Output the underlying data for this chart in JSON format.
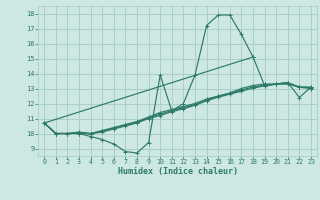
{
  "xlabel": "Humidex (Indice chaleur)",
  "xlim": [
    -0.5,
    23.5
  ],
  "ylim": [
    8.5,
    18.5
  ],
  "xticks": [
    0,
    1,
    2,
    3,
    4,
    5,
    6,
    7,
    8,
    9,
    10,
    11,
    12,
    13,
    14,
    15,
    16,
    17,
    18,
    19,
    20,
    21,
    22,
    23
  ],
  "yticks": [
    9,
    10,
    11,
    12,
    13,
    14,
    15,
    16,
    17,
    18
  ],
  "background_color": "#cde8e2",
  "grid_color": "#aacec8",
  "line_color": "#2d7a6a",
  "lines": [
    {
      "x": [
        0,
        1,
        2,
        3,
        4,
        5,
        6,
        7,
        8,
        9,
        10,
        11,
        12,
        13,
        14,
        15,
        16,
        17,
        18,
        19,
        20,
        21,
        22,
        23
      ],
      "y": [
        10.7,
        10.0,
        10.0,
        10.0,
        9.8,
        9.6,
        9.3,
        8.8,
        8.7,
        9.4,
        13.9,
        11.5,
        12.0,
        13.9,
        17.2,
        17.9,
        17.9,
        16.6,
        15.1,
        13.2,
        13.3,
        13.4,
        12.4,
        13.1
      ]
    },
    {
      "x": [
        0,
        1,
        2,
        3,
        4,
        5,
        6,
        7,
        8,
        9,
        10,
        11,
        12,
        13,
        14,
        15,
        16,
        17,
        18,
        19,
        20,
        21,
        22,
        23
      ],
      "y": [
        10.7,
        10.0,
        10.0,
        10.1,
        10.0,
        10.2,
        10.4,
        10.6,
        10.8,
        11.1,
        11.4,
        11.6,
        11.8,
        12.0,
        12.3,
        12.5,
        12.7,
        13.0,
        13.2,
        13.3,
        13.3,
        13.4,
        13.1,
        13.1
      ]
    },
    {
      "x": [
        0,
        1,
        2,
        3,
        4,
        5,
        6,
        7,
        8,
        9,
        10,
        11,
        12,
        13,
        14,
        15,
        16,
        17,
        18,
        19,
        20,
        21,
        22,
        23
      ],
      "y": [
        10.7,
        10.0,
        10.0,
        10.05,
        10.0,
        10.15,
        10.35,
        10.55,
        10.75,
        11.05,
        11.3,
        11.52,
        11.72,
        11.92,
        12.22,
        12.47,
        12.67,
        12.9,
        13.1,
        13.22,
        13.3,
        13.35,
        13.1,
        13.05
      ]
    },
    {
      "x": [
        0,
        1,
        2,
        3,
        4,
        5,
        6,
        7,
        8,
        9,
        10,
        11,
        12,
        13,
        14,
        15,
        16,
        17,
        18,
        19,
        20,
        21,
        22,
        23
      ],
      "y": [
        10.7,
        10.0,
        10.0,
        10.0,
        9.98,
        10.1,
        10.3,
        10.5,
        10.7,
        11.0,
        11.2,
        11.45,
        11.65,
        11.88,
        12.18,
        12.42,
        12.62,
        12.82,
        13.02,
        13.18,
        13.28,
        13.3,
        13.08,
        13.0
      ]
    },
    {
      "x": [
        0,
        18
      ],
      "y": [
        10.7,
        15.1
      ]
    }
  ]
}
